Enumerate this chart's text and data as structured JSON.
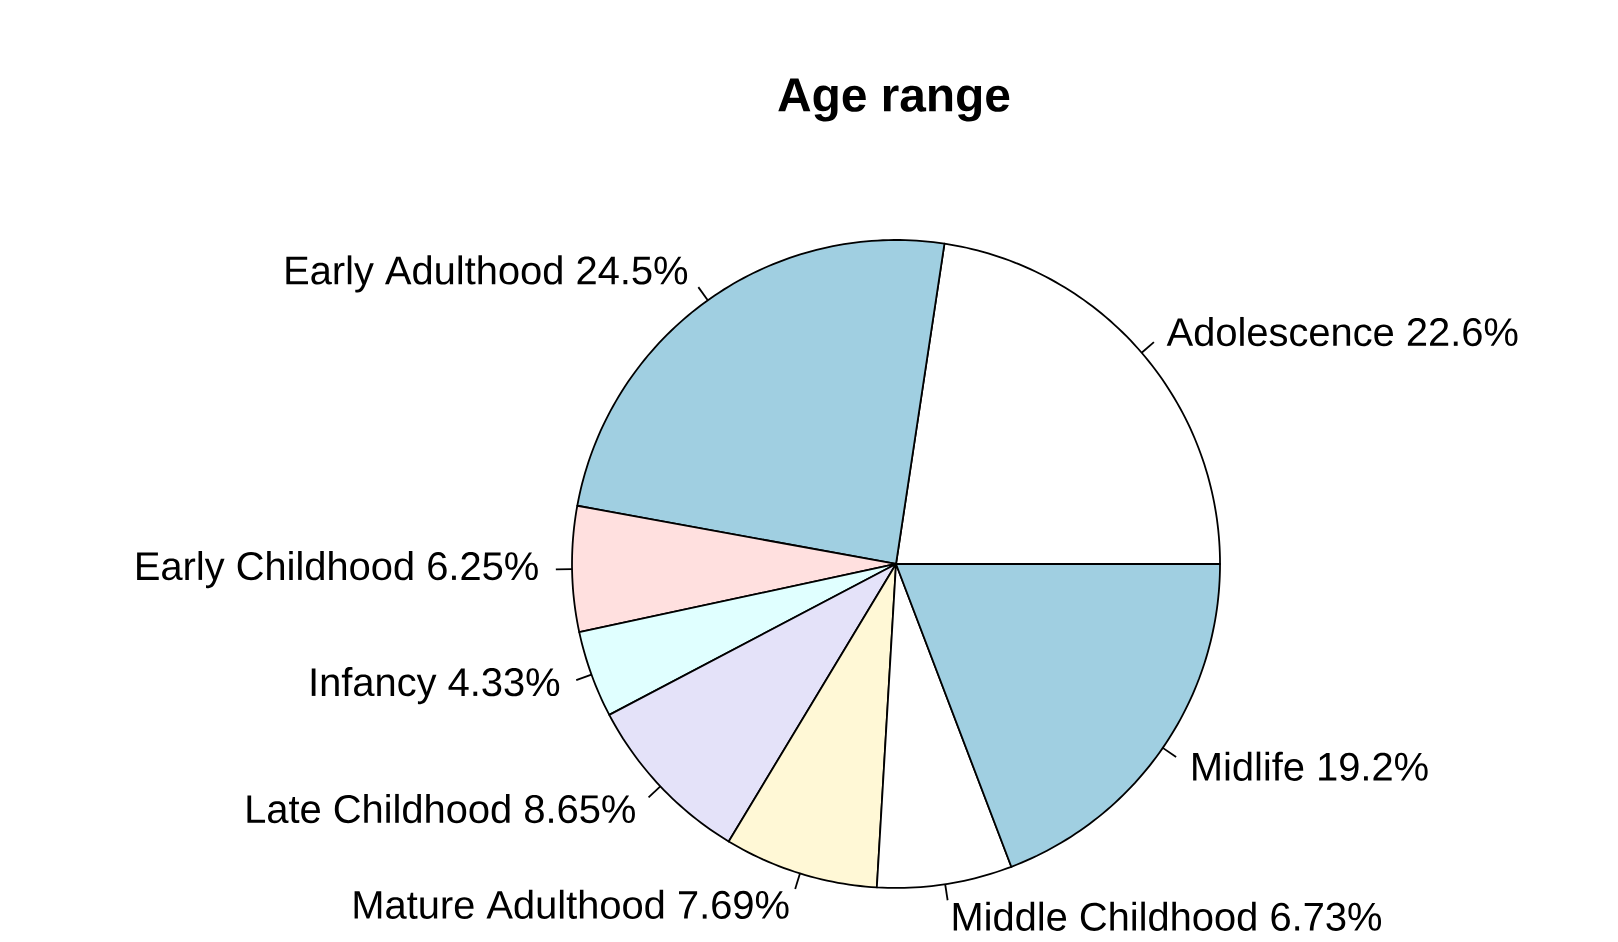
{
  "chart_data": {
    "type": "pie",
    "title": "Age range",
    "categories": [
      "Adolescence",
      "Early Adulthood",
      "Early Childhood",
      "Infancy",
      "Late Childhood",
      "Mature Adulthood",
      "Middle Childhood",
      "Midlife"
    ],
    "values": [
      22.6,
      24.5,
      6.25,
      4.33,
      8.65,
      7.69,
      6.73,
      19.2
    ],
    "value_labels": [
      "22.6%",
      "24.5%",
      "6.25%",
      "4.33%",
      "8.65%",
      "7.69%",
      "6.73%",
      "19.2%"
    ],
    "colors": [
      "#ffffff",
      "#a0cfe1",
      "#ffe0df",
      "#e0ffff",
      "#e4e2f9",
      "#fff8d6",
      "#ffffff",
      "#a0cfe1"
    ]
  }
}
